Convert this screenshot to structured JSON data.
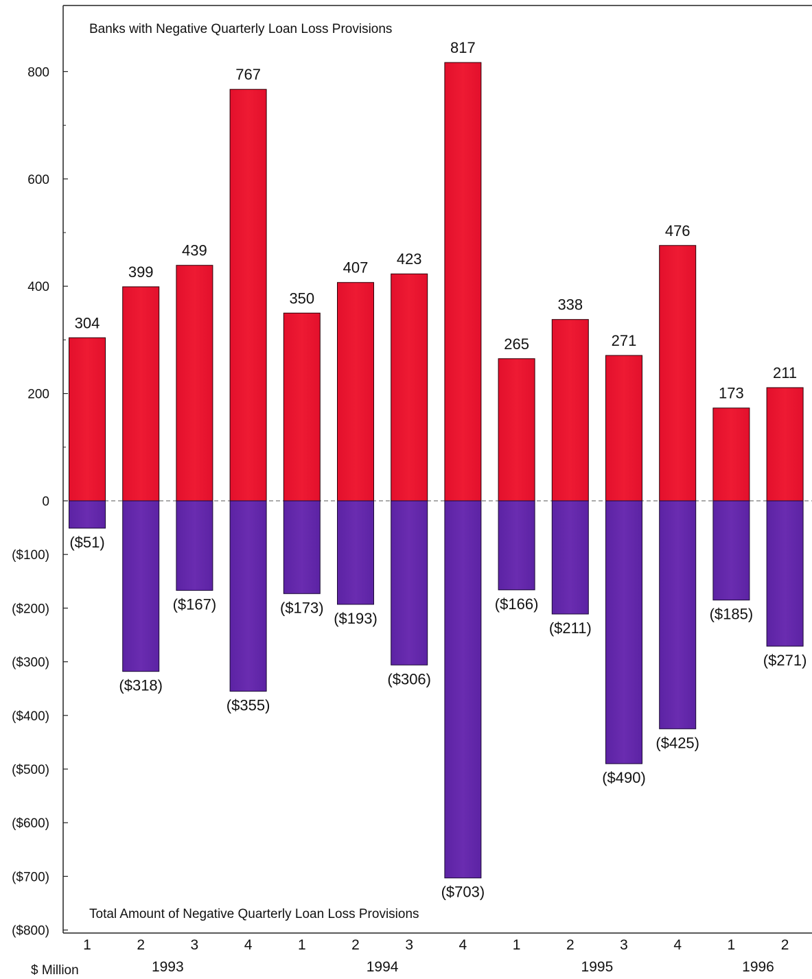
{
  "chart_data": {
    "type": "bar",
    "annotations": {
      "top": "Banks with Negative Quarterly Loan Loss Provisions",
      "bottom": "Total Amount of Negative Quarterly Loan Loss Provisions",
      "units": "$ Million"
    },
    "categories": [
      "1",
      "2",
      "3",
      "4",
      "1",
      "2",
      "3",
      "4",
      "1",
      "2",
      "3",
      "4",
      "1",
      "2"
    ],
    "years": [
      {
        "label": "1993",
        "from": 0,
        "to": 3
      },
      {
        "label": "1994",
        "from": 4,
        "to": 7
      },
      {
        "label": "1995",
        "from": 8,
        "to": 11
      },
      {
        "label": "1996",
        "from": 12,
        "to": 13
      }
    ],
    "series": [
      {
        "color": "#e8102a",
        "values": [
          304,
          399,
          439,
          767,
          350,
          407,
          423,
          817,
          265,
          338,
          271,
          476,
          173,
          211
        ],
        "labels": [
          "304",
          "399",
          "439",
          "767",
          "350",
          "407",
          "423",
          "817",
          "265",
          "338",
          "271",
          "476",
          "173",
          "211"
        ]
      },
      {
        "color": "#5a1fa6",
        "values": [
          -51,
          -318,
          -167,
          -355,
          -173,
          -193,
          -306,
          -703,
          -166,
          -211,
          -490,
          -425,
          -185,
          -271
        ],
        "labels": [
          "($51)",
          "($318)",
          "($167)",
          "($355)",
          "($173)",
          "($193)",
          "($306)",
          "($703)",
          "($166)",
          "($211)",
          "($490)",
          "($425)",
          "($185)",
          "($271)"
        ]
      }
    ],
    "ylim": [
      -800,
      900
    ],
    "yticks": [
      800,
      600,
      400,
      200,
      0,
      -100,
      -200,
      -300,
      -400,
      -500,
      -600,
      -700,
      -800
    ],
    "ytick_labels": [
      "800",
      "600",
      "400",
      "200",
      "0",
      "($100)",
      "($200)",
      "($300)",
      "($400)",
      "($500)",
      "($600)",
      "($700)",
      "($800)"
    ],
    "grid": false,
    "zero_line": "dashed"
  }
}
